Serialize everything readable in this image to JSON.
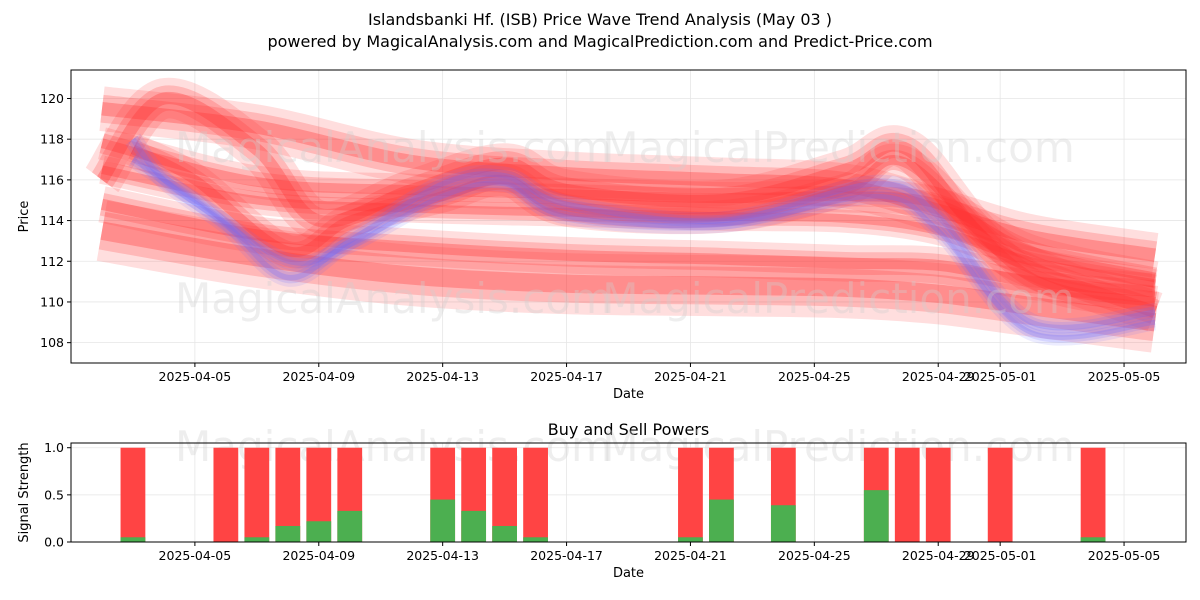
{
  "header": {
    "title": "Islandsbanki Hf. (ISB) Price Wave Trend Analysis (May 03 )",
    "subtitle": "powered by MagicalAnalysis.com and MagicalPrediction.com and Predict-Price.com"
  },
  "watermarks": [
    "MagicalAnalysis.com",
    "MagicalPrediction.com"
  ],
  "chart_data": [
    {
      "type": "area",
      "title": "",
      "xlabel": "Date",
      "ylabel": "Price",
      "xlim": [
        "2025-04-01",
        "2025-05-07"
      ],
      "ylim": [
        107,
        121.4
      ],
      "x_ticks": [
        "2025-04-05",
        "2025-04-09",
        "2025-04-13",
        "2025-04-17",
        "2025-04-21",
        "2025-04-25",
        "2025-04-29",
        "2025-05-01",
        "2025-05-05"
      ],
      "y_ticks": [
        108,
        110,
        112,
        114,
        116,
        118,
        120
      ],
      "grid": true,
      "colors": {
        "red_band": "#ff3333",
        "blue_band": "#6a6aff"
      },
      "series": [
        {
          "color": "red",
          "x": [
            "2025-04-02",
            "2025-04-07",
            "2025-04-12",
            "2025-04-17",
            "2025-04-22",
            "2025-04-26",
            "2025-04-29",
            "2025-05-02",
            "2025-05-06"
          ],
          "values": [
            119.5,
            118.6,
            116.9,
            116.3,
            116.0,
            115.7,
            114.5,
            113.2,
            112.3
          ],
          "width": 2.2
        },
        {
          "color": "red",
          "x": [
            "2025-04-02",
            "2025-04-07",
            "2025-04-12",
            "2025-04-17",
            "2025-04-22",
            "2025-04-26",
            "2025-04-29",
            "2025-05-02",
            "2025-05-06"
          ],
          "values": [
            117.8,
            115.9,
            115.5,
            115.3,
            115.1,
            115.2,
            114.8,
            112.5,
            111.2
          ],
          "width": 1.6
        },
        {
          "color": "red",
          "x": [
            "2025-04-02",
            "2025-04-07",
            "2025-04-12",
            "2025-04-17",
            "2025-04-22",
            "2025-04-26",
            "2025-04-29",
            "2025-05-02",
            "2025-05-06"
          ],
          "values": [
            116.5,
            115.0,
            114.6,
            114.4,
            114.2,
            114.1,
            113.5,
            112.0,
            110.9
          ],
          "width": 1.4
        },
        {
          "color": "red",
          "x": [
            "2025-04-02",
            "2025-04-07",
            "2025-04-12",
            "2025-04-17",
            "2025-04-22",
            "2025-04-26",
            "2025-04-29",
            "2025-05-02",
            "2025-05-06"
          ],
          "values": [
            114.8,
            113.3,
            112.7,
            112.3,
            112.1,
            111.9,
            111.8,
            111.0,
            110.5
          ],
          "width": 1.8
        },
        {
          "color": "red",
          "x": [
            "2025-04-02",
            "2025-04-07",
            "2025-04-12",
            "2025-04-17",
            "2025-04-22",
            "2025-04-26",
            "2025-04-29",
            "2025-05-02",
            "2025-05-06"
          ],
          "values": [
            113.5,
            112.2,
            111.3,
            110.9,
            110.8,
            110.7,
            110.4,
            109.8,
            109.0
          ],
          "width": 3.0
        },
        {
          "color": "red",
          "x": [
            "2025-04-02",
            "2025-04-04",
            "2025-04-07",
            "2025-04-09",
            "2025-04-12",
            "2025-04-15",
            "2025-04-17",
            "2025-04-22",
            "2025-04-26",
            "2025-04-28",
            "2025-05-01",
            "2025-05-06"
          ],
          "values": [
            116.0,
            120.0,
            117.5,
            114.0,
            115.5,
            116.8,
            115.5,
            115.0,
            116.5,
            117.5,
            112.5,
            109.5
          ],
          "width": 2.0
        },
        {
          "color": "red",
          "x": [
            "2025-04-03",
            "2025-04-05",
            "2025-04-08",
            "2025-04-10",
            "2025-04-13",
            "2025-04-15",
            "2025-04-17",
            "2025-04-22",
            "2025-04-26",
            "2025-04-28",
            "2025-05-02",
            "2025-05-06"
          ],
          "values": [
            117.5,
            116.0,
            112.5,
            114.0,
            115.2,
            116.0,
            114.5,
            114.2,
            115.5,
            116.8,
            111.2,
            110.0
          ],
          "width": 1.6
        },
        {
          "color": "blue",
          "x": [
            "2025-04-03",
            "2025-04-04",
            "2025-04-06",
            "2025-04-08",
            "2025-04-10",
            "2025-04-13",
            "2025-04-15",
            "2025-04-17",
            "2025-04-22",
            "2025-04-27",
            "2025-04-29",
            "2025-05-02",
            "2025-05-06"
          ],
          "values": [
            118.0,
            116.0,
            113.8,
            111.2,
            113.0,
            115.8,
            116.2,
            114.8,
            114.0,
            115.8,
            114.2,
            109.0,
            109.5
          ],
          "width": 0.9
        },
        {
          "color": "blue",
          "x": [
            "2025-04-03",
            "2025-04-05",
            "2025-04-08",
            "2025-04-10",
            "2025-04-13",
            "2025-04-15",
            "2025-04-17",
            "2025-04-22",
            "2025-04-27",
            "2025-04-29",
            "2025-05-02",
            "2025-05-06"
          ],
          "values": [
            117.0,
            115.0,
            112.0,
            112.8,
            115.2,
            115.8,
            114.2,
            113.8,
            115.2,
            113.5,
            108.5,
            109.0
          ],
          "width": 0.8
        }
      ]
    },
    {
      "type": "bar",
      "title": "Buy and Sell Powers",
      "xlabel": "Date",
      "ylabel": "Signal Strength",
      "xlim": [
        "2025-04-01",
        "2025-05-07"
      ],
      "ylim": [
        0,
        1.05
      ],
      "x_ticks": [
        "2025-04-05",
        "2025-04-09",
        "2025-04-13",
        "2025-04-17",
        "2025-04-21",
        "2025-04-25",
        "2025-04-29",
        "2025-05-01",
        "2025-05-05"
      ],
      "y_ticks": [
        "0.0",
        "0.5",
        "1.0"
      ],
      "grid": true,
      "colors": {
        "buy": "#4caf50",
        "sell": "#ff4444"
      },
      "bars": [
        {
          "date": "2025-04-03",
          "buy": 0.05,
          "total": 1.0
        },
        {
          "date": "2025-04-06",
          "buy": 0.0,
          "total": 1.0
        },
        {
          "date": "2025-04-07",
          "buy": 0.05,
          "total": 1.0
        },
        {
          "date": "2025-04-08",
          "buy": 0.17,
          "total": 1.0
        },
        {
          "date": "2025-04-09",
          "buy": 0.22,
          "total": 1.0
        },
        {
          "date": "2025-04-10",
          "buy": 0.33,
          "total": 1.0
        },
        {
          "date": "2025-04-13",
          "buy": 0.45,
          "total": 1.0
        },
        {
          "date": "2025-04-14",
          "buy": 0.33,
          "total": 1.0
        },
        {
          "date": "2025-04-15",
          "buy": 0.17,
          "total": 1.0
        },
        {
          "date": "2025-04-16",
          "buy": 0.05,
          "total": 1.0
        },
        {
          "date": "2025-04-21",
          "buy": 0.05,
          "total": 1.0
        },
        {
          "date": "2025-04-22",
          "buy": 0.45,
          "total": 1.0
        },
        {
          "date": "2025-04-24",
          "buy": 0.39,
          "total": 1.0
        },
        {
          "date": "2025-04-27",
          "buy": 0.55,
          "total": 1.0
        },
        {
          "date": "2025-04-28",
          "buy": 0.0,
          "total": 1.0
        },
        {
          "date": "2025-04-29",
          "buy": 0.0,
          "total": 1.0
        },
        {
          "date": "2025-05-01",
          "buy": 0.0,
          "total": 1.0
        },
        {
          "date": "2025-05-04",
          "buy": 0.05,
          "total": 1.0
        }
      ]
    }
  ]
}
